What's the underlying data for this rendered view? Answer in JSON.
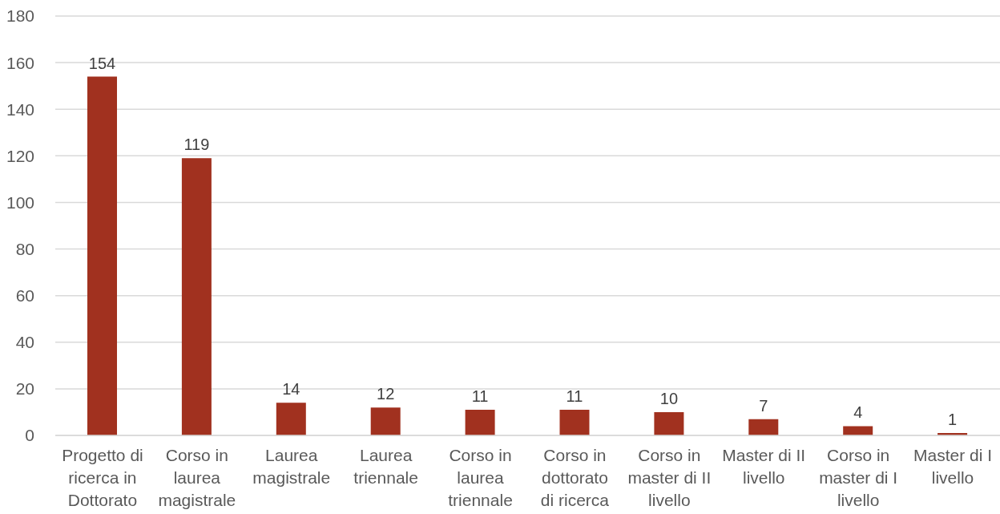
{
  "chart_data": {
    "type": "bar",
    "categories": [
      "Progetto di ricerca in Dottorato",
      "Corso in laurea magistrale",
      "Laurea magistrale",
      "Laurea triennale",
      "Corso in laurea triennale",
      "Corso in dottorato di ricerca",
      "Corso in master di II livello",
      "Master di II livello",
      "Corso in master di I livello",
      "Master di I livello"
    ],
    "values": [
      154,
      119,
      14,
      12,
      11,
      11,
      10,
      7,
      4,
      1
    ],
    "color": "#a1311f",
    "ylim": [
      0,
      180
    ],
    "yticks": [
      0,
      20,
      40,
      60,
      80,
      100,
      120,
      140,
      160,
      180
    ],
    "grid": "y",
    "data_labels": true
  }
}
